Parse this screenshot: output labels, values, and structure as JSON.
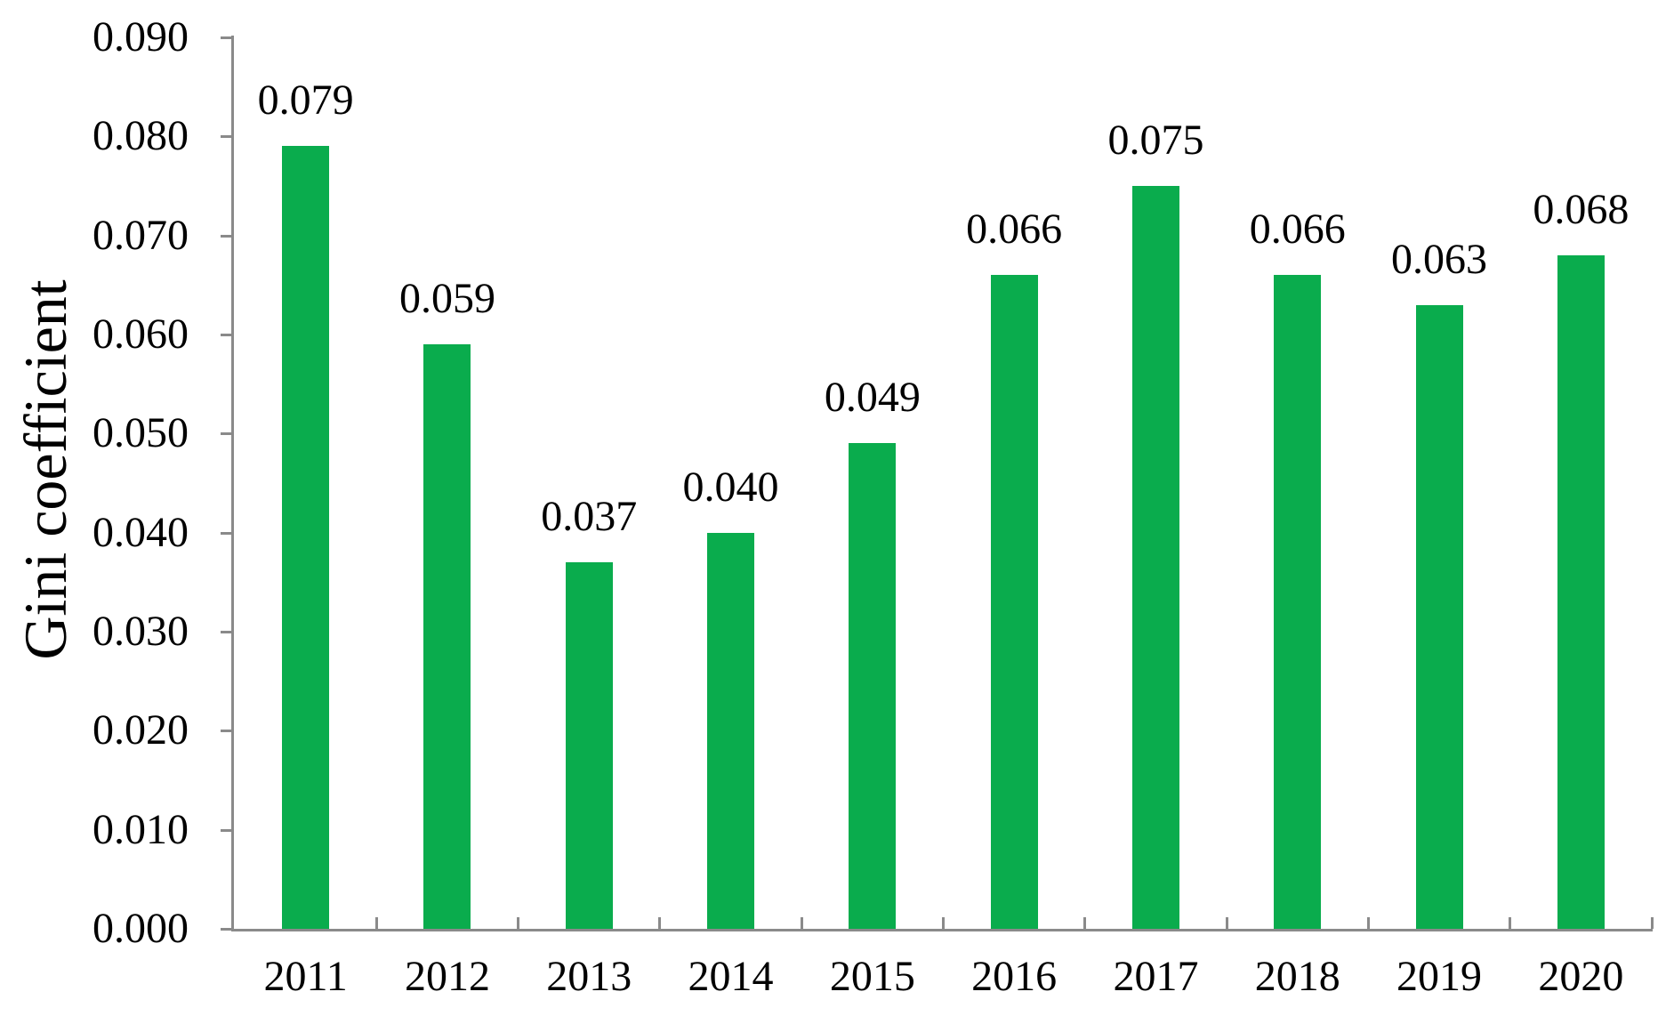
{
  "chart_data": {
    "type": "bar",
    "title": "",
    "xlabel": "",
    "ylabel": "Gini coefficient",
    "categories": [
      "2011",
      "2012",
      "2013",
      "2014",
      "2015",
      "2016",
      "2017",
      "2018",
      "2019",
      "2020"
    ],
    "values": [
      0.079,
      0.059,
      0.037,
      0.04,
      0.049,
      0.066,
      0.075,
      0.066,
      0.063,
      0.068
    ],
    "value_labels": [
      "0.079",
      "0.059",
      "0.037",
      "0.040",
      "0.049",
      "0.066",
      "0.075",
      "0.066",
      "0.063",
      "0.068"
    ],
    "ylim": [
      0.0,
      0.09
    ],
    "ytick_step": 0.01,
    "ytick_labels_top_to_bottom": [
      "0.090",
      "0.080",
      "0.070",
      "0.060",
      "0.050",
      "0.040",
      "0.030",
      "0.020",
      "0.010",
      "0.000"
    ],
    "grid": false,
    "legend": false,
    "bar_color": "#0aac4d",
    "axis_color": "#8a8a8a",
    "text_color": "#000000",
    "background_color": "#ffffff"
  }
}
